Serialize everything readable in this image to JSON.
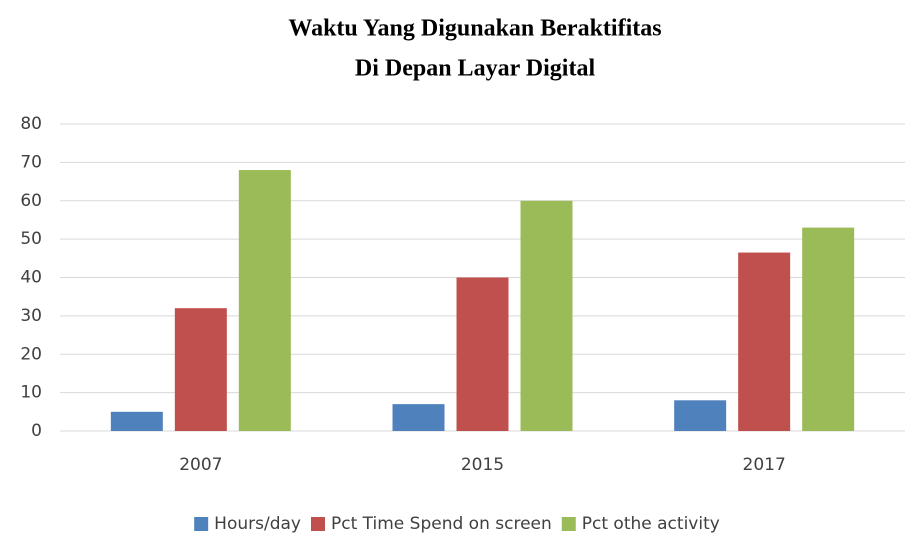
{
  "chart_data": {
    "type": "bar",
    "title": [
      "Waktu Yang Digunakan Beraktifitas",
      "Di Depan Layar Digital"
    ],
    "categories": [
      "2007",
      "2015",
      "2017"
    ],
    "series": [
      {
        "name": "Hours/day",
        "color": "#4f81bd",
        "values": [
          5,
          7,
          8
        ]
      },
      {
        "name": "Pct Time Spend on screen",
        "color": "#c0504d",
        "values": [
          32,
          40,
          46.5
        ]
      },
      {
        "name": "Pct othe activity",
        "color": "#9bbb59",
        "values": [
          68,
          60,
          53
        ]
      }
    ],
    "ylim": [
      0,
      80
    ],
    "yticks": [
      0,
      10,
      20,
      30,
      40,
      50,
      60,
      70,
      80
    ],
    "grid": true,
    "legend": "bottom"
  }
}
